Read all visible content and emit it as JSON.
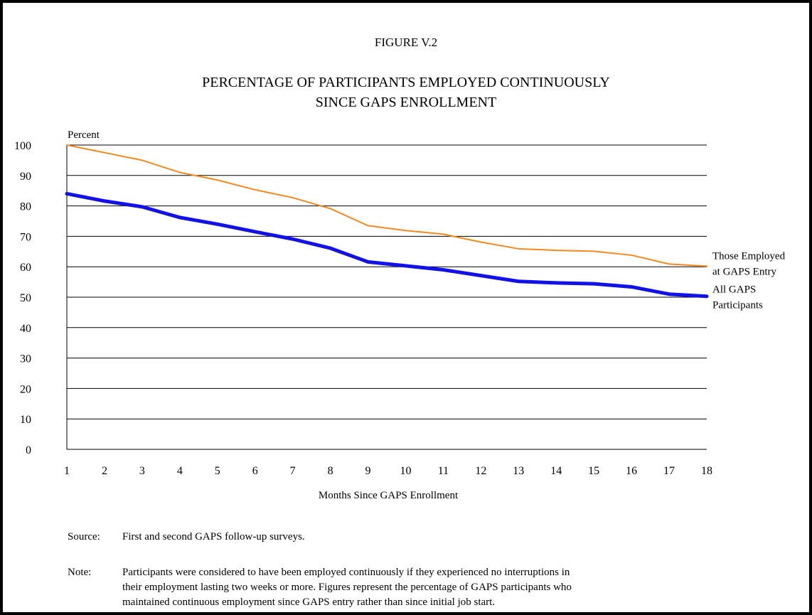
{
  "chart_data": {
    "type": "line",
    "figure_label": "FIGURE V.2",
    "title_lines": [
      "PERCENTAGE OF PARTICIPANTS EMPLOYED CONTINUOUSLY",
      "SINCE GAPS ENROLLMENT"
    ],
    "ylabel": "Percent",
    "xlabel": "Months Since GAPS Enrollment",
    "x": [
      1,
      2,
      3,
      4,
      5,
      6,
      7,
      8,
      9,
      10,
      11,
      12,
      13,
      14,
      15,
      16,
      17,
      18
    ],
    "ylim": [
      0,
      100
    ],
    "yticks": [
      0,
      10,
      20,
      30,
      40,
      50,
      60,
      70,
      80,
      90,
      100
    ],
    "grid": true,
    "series": [
      {
        "name_lines": [
          "Those Employed",
          "at GAPS Entry"
        ],
        "color": "#f5891f",
        "values": [
          100,
          97.5,
          95,
          91,
          88.5,
          85.3,
          82.7,
          79.1,
          73.5,
          71.9,
          70.7,
          68.1,
          65.9,
          65.4,
          65.1,
          63.8,
          60.9,
          60.2
        ]
      },
      {
        "name_lines": [
          "All GAPS",
          "Participants"
        ],
        "color": "#1212e6",
        "values": [
          84,
          81.6,
          79.7,
          76.2,
          74,
          71.5,
          69.1,
          66.1,
          61.6,
          60.3,
          59.0,
          57.1,
          55.2,
          54.7,
          54.4,
          53.4,
          51.0,
          50.3
        ]
      }
    ]
  },
  "source": {
    "label": "Source:",
    "text": "First and second GAPS follow-up surveys."
  },
  "note": {
    "label": "Note:",
    "lines": [
      "Participants were considered to have been employed continuously if they experienced no interruptions in",
      "their employment lasting two weeks or more.  Figures represent the percentage of GAPS participants who",
      "maintained continuous employment since GAPS entry rather than since initial job start."
    ]
  }
}
